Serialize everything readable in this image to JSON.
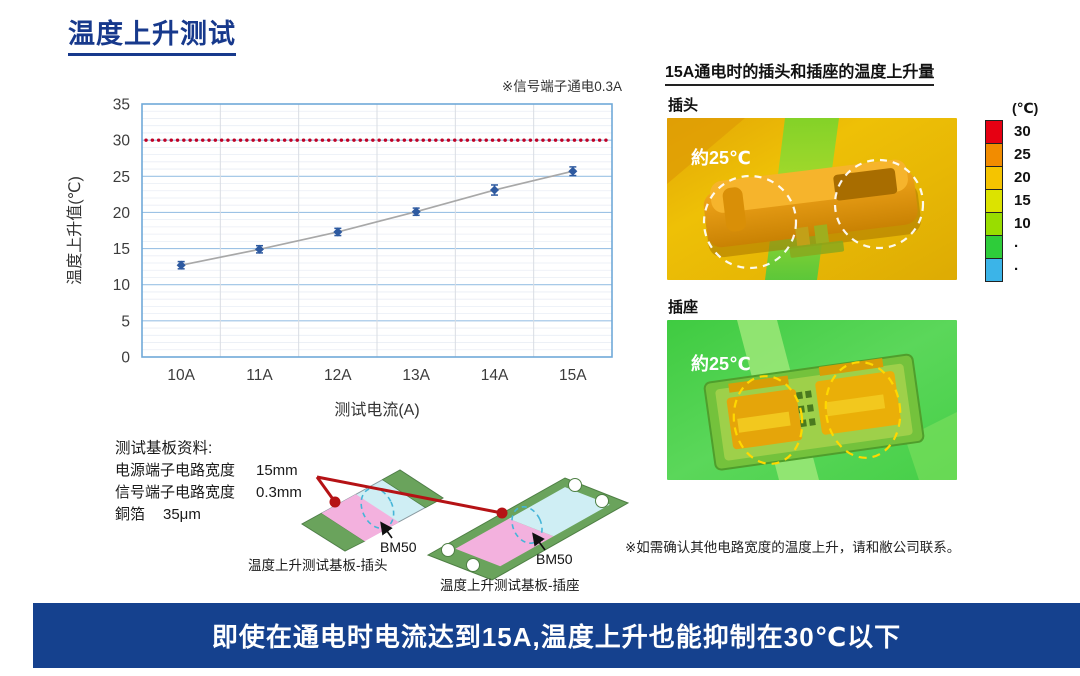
{
  "page": {
    "title": "温度上升测试"
  },
  "chart_data": {
    "type": "line",
    "categories": [
      "10A",
      "11A",
      "12A",
      "13A",
      "14A",
      "15A"
    ],
    "series": [
      {
        "name": "温度上升值",
        "values": [
          12.7,
          14.9,
          17.3,
          20.1,
          23.1,
          25.7
        ],
        "error_bars": [
          0.5,
          0.5,
          0.5,
          0.5,
          0.7,
          0.6
        ]
      }
    ],
    "reference_line": {
      "value": 30,
      "color": "#c00024",
      "style": "dotted"
    },
    "ylabel": "温度上升值(℃)",
    "xlabel": "测试电流(A)",
    "ylim": [
      0,
      35
    ],
    "ytick_step": 5,
    "note": "※信号端子通电0.3A",
    "grid": true,
    "legend": false,
    "marker_color": "#2e5aa0",
    "trend_line_color": "#a8a8a8",
    "grid_major_color": "#9cc2e5",
    "grid_minor_color": "#e9eef5",
    "border_color": "#70a9d8"
  },
  "right_panel": {
    "header": "15A通电时的插头和插座的温度上升量",
    "plug": {
      "label": "插头",
      "annotation": "約25℃"
    },
    "socket": {
      "label": "插座",
      "annotation": "約25℃"
    },
    "scale": {
      "unit": "(℃)",
      "labels": [
        "30",
        "25",
        "20",
        "15",
        "10",
        "·",
        "·"
      ],
      "colors": [
        "#e60012",
        "#f28c00",
        "#f5c400",
        "#dce300",
        "#99dd00",
        "#2ecc3a",
        "#3bb4e8"
      ]
    }
  },
  "board_info": {
    "title": "测试基板资料:",
    "rows": [
      {
        "label": "电源端子电路宽度",
        "value": "15mm"
      },
      {
        "label": "信号端子电路宽度",
        "value": "0.3mm"
      },
      {
        "label": "銅箔",
        "value": "35μm"
      }
    ],
    "plug_board_caption": "温度上升测试基板-插头",
    "socket_board_caption": "温度上升测试基板-插座",
    "component_label": "BM50"
  },
  "notes": {
    "contact": "※如需确认其他电路宽度的温度上升，请和敝公司联系。"
  },
  "banner": {
    "text": "即使在通电时电流达到15A,温度上升也能抑制在30℃以下",
    "background": "#15418e"
  }
}
